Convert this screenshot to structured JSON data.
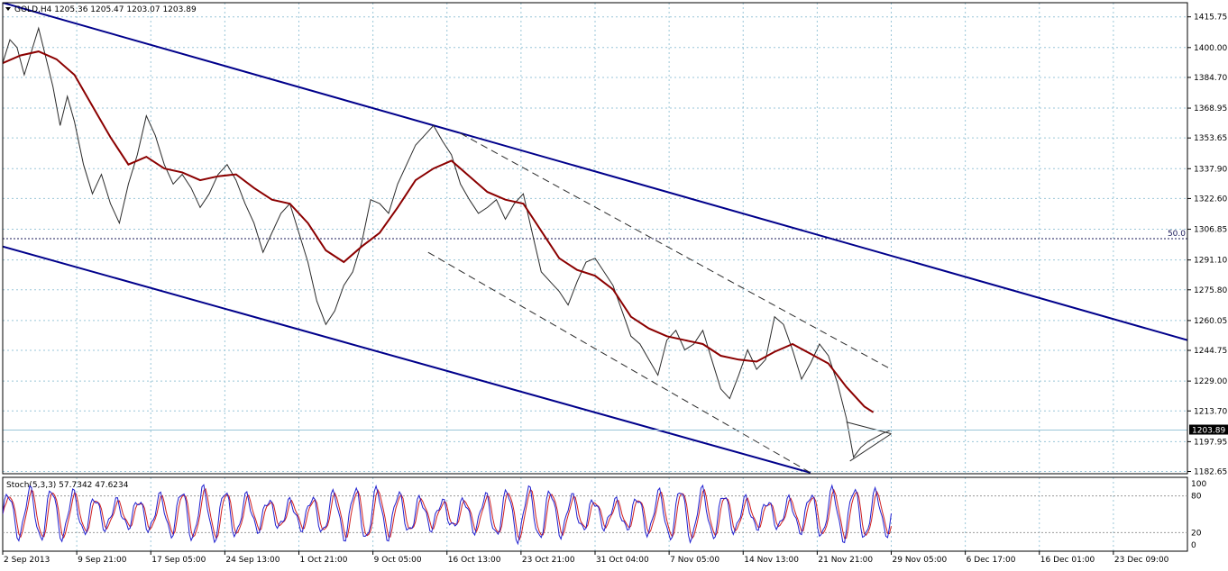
{
  "chart_data": {
    "type": "line",
    "title": "GOLD,H4  1205.36 1205.47 1203.07 1203.89",
    "symbol": "GOLD",
    "timeframe": "H4",
    "ohlc": {
      "open": 1205.36,
      "high": 1205.47,
      "low": 1203.07,
      "close": 1203.89
    },
    "current_price_label": "1203.89",
    "y_ticks": [
      "1415.75",
      "1400.00",
      "1384.70",
      "1368.95",
      "1353.65",
      "1337.90",
      "1322.60",
      "1306.85",
      "1291.10",
      "1275.80",
      "1260.05",
      "1244.75",
      "1229.00",
      "1213.70",
      "1197.95",
      "1182.65"
    ],
    "ylim": [
      1181.5,
      1423
    ],
    "x_ticks": [
      "2 Sep 2013",
      "9 Sep 21:00",
      "17 Sep 05:00",
      "24 Sep 13:00",
      "1 Oct 21:00",
      "9 Oct 05:00",
      "16 Oct 13:00",
      "23 Oct 21:00",
      "31 Oct 04:00",
      "7 Nov 05:00",
      "14 Nov 13:00",
      "21 Nov 21:00",
      "29 Nov 05:00",
      "6 Dec 17:00",
      "16 Dec 01:00",
      "23 Dec 09:00"
    ],
    "fib_level_label": "50.0",
    "fib_level_value": 1302,
    "series": [
      {
        "role": "price",
        "color": "#2b2b2b",
        "points": [
          [
            0,
            1392
          ],
          [
            4,
            1404
          ],
          [
            8,
            1400
          ],
          [
            12,
            1386
          ],
          [
            16,
            1398
          ],
          [
            20,
            1410
          ],
          [
            24,
            1395
          ],
          [
            28,
            1380
          ],
          [
            32,
            1360
          ],
          [
            36,
            1375
          ],
          [
            40,
            1362
          ],
          [
            45,
            1340
          ],
          [
            50,
            1325
          ],
          [
            55,
            1335
          ],
          [
            60,
            1320
          ],
          [
            65,
            1310
          ],
          [
            70,
            1330
          ],
          [
            75,
            1345
          ],
          [
            80,
            1365
          ],
          [
            85,
            1355
          ],
          [
            90,
            1340
          ],
          [
            95,
            1330
          ],
          [
            100,
            1335
          ],
          [
            105,
            1328
          ],
          [
            110,
            1318
          ],
          [
            115,
            1325
          ],
          [
            120,
            1335
          ],
          [
            125,
            1340
          ],
          [
            130,
            1332
          ],
          [
            135,
            1320
          ],
          [
            140,
            1310
          ],
          [
            145,
            1295
          ],
          [
            150,
            1305
          ],
          [
            155,
            1315
          ],
          [
            160,
            1320
          ],
          [
            165,
            1305
          ],
          [
            170,
            1290
          ],
          [
            175,
            1270
          ],
          [
            180,
            1258
          ],
          [
            185,
            1265
          ],
          [
            190,
            1278
          ],
          [
            195,
            1285
          ],
          [
            200,
            1300
          ],
          [
            205,
            1322
          ],
          [
            210,
            1320
          ],
          [
            215,
            1315
          ],
          [
            220,
            1330
          ],
          [
            225,
            1340
          ],
          [
            230,
            1350
          ],
          [
            235,
            1355
          ],
          [
            240,
            1360
          ],
          [
            245,
            1352
          ],
          [
            250,
            1345
          ],
          [
            255,
            1330
          ],
          [
            260,
            1322
          ],
          [
            265,
            1315
          ],
          [
            270,
            1318
          ],
          [
            275,
            1322
          ],
          [
            280,
            1312
          ],
          [
            285,
            1320
          ],
          [
            290,
            1325
          ],
          [
            295,
            1305
          ],
          [
            300,
            1285
          ],
          [
            305,
            1280
          ],
          [
            310,
            1275
          ],
          [
            315,
            1268
          ],
          [
            320,
            1280
          ],
          [
            325,
            1290
          ],
          [
            330,
            1292
          ],
          [
            335,
            1285
          ],
          [
            340,
            1278
          ],
          [
            345,
            1265
          ],
          [
            350,
            1252
          ],
          [
            355,
            1248
          ],
          [
            360,
            1240
          ],
          [
            365,
            1232
          ],
          [
            370,
            1250
          ],
          [
            375,
            1255
          ],
          [
            380,
            1245
          ],
          [
            385,
            1248
          ],
          [
            390,
            1255
          ],
          [
            395,
            1240
          ],
          [
            400,
            1225
          ],
          [
            405,
            1220
          ],
          [
            410,
            1232
          ],
          [
            415,
            1245
          ],
          [
            420,
            1235
          ],
          [
            425,
            1240
          ],
          [
            430,
            1262
          ],
          [
            435,
            1258
          ],
          [
            440,
            1245
          ],
          [
            445,
            1230
          ],
          [
            450,
            1238
          ],
          [
            455,
            1248
          ],
          [
            460,
            1242
          ],
          [
            465,
            1228
          ],
          [
            470,
            1210
          ],
          [
            474,
            1190
          ],
          [
            478,
            1195
          ],
          [
            482,
            1198
          ],
          [
            486,
            1200
          ],
          [
            490,
            1202
          ],
          [
            495,
            1204
          ]
        ]
      },
      {
        "role": "moving_average",
        "color": "#8b0000",
        "points": [
          [
            0,
            1392
          ],
          [
            10,
            1396
          ],
          [
            20,
            1398
          ],
          [
            30,
            1394
          ],
          [
            40,
            1386
          ],
          [
            50,
            1370
          ],
          [
            60,
            1354
          ],
          [
            70,
            1340
          ],
          [
            80,
            1344
          ],
          [
            90,
            1338
          ],
          [
            100,
            1336
          ],
          [
            110,
            1332
          ],
          [
            120,
            1334
          ],
          [
            130,
            1335
          ],
          [
            140,
            1328
          ],
          [
            150,
            1322
          ],
          [
            160,
            1320
          ],
          [
            170,
            1310
          ],
          [
            180,
            1296
          ],
          [
            190,
            1290
          ],
          [
            200,
            1298
          ],
          [
            210,
            1305
          ],
          [
            220,
            1318
          ],
          [
            230,
            1332
          ],
          [
            240,
            1338
          ],
          [
            250,
            1342
          ],
          [
            260,
            1334
          ],
          [
            270,
            1326
          ],
          [
            280,
            1322
          ],
          [
            290,
            1320
          ],
          [
            300,
            1306
          ],
          [
            310,
            1292
          ],
          [
            320,
            1286
          ],
          [
            330,
            1283
          ],
          [
            340,
            1276
          ],
          [
            350,
            1262
          ],
          [
            360,
            1256
          ],
          [
            370,
            1252
          ],
          [
            380,
            1250
          ],
          [
            390,
            1248
          ],
          [
            400,
            1242
          ],
          [
            410,
            1240
          ],
          [
            420,
            1239
          ],
          [
            430,
            1244
          ],
          [
            440,
            1248
          ],
          [
            450,
            1243
          ],
          [
            460,
            1238
          ],
          [
            470,
            1226
          ],
          [
            480,
            1216
          ],
          [
            485,
            1213
          ]
        ]
      }
    ],
    "channel": {
      "upper": [
        [
          0,
          1423
        ],
        [
          660,
          1250
        ]
      ],
      "lower": [
        [
          0,
          1298
        ],
        [
          450,
          1182
        ]
      ]
    },
    "dashed_channel": {
      "upper": [
        [
          255,
          1356
        ],
        [
          495,
          1235
        ]
      ],
      "lower": [
        [
          237,
          1295
        ],
        [
          450,
          1182
        ]
      ]
    },
    "triangle": {
      "top": [
        [
          470,
          1208
        ],
        [
          495,
          1202
        ]
      ],
      "bottom": [
        [
          472,
          1188
        ],
        [
          495,
          1202
        ]
      ]
    },
    "stochastic": {
      "label": "Stoch(5,3,3) 57.7342 47.6234",
      "ylim": [
        0,
        100
      ],
      "y_ticks": [
        "100",
        "80",
        "20",
        "0"
      ],
      "levels": [
        80,
        20
      ],
      "main_color": "#1f1fd0",
      "signal_color": "#d01f1f"
    },
    "grid": true,
    "colors": {
      "channel": "#00008b",
      "grid": "#9ac6d8",
      "moving_average": "#8b0000",
      "price": "#2b2b2b"
    }
  }
}
